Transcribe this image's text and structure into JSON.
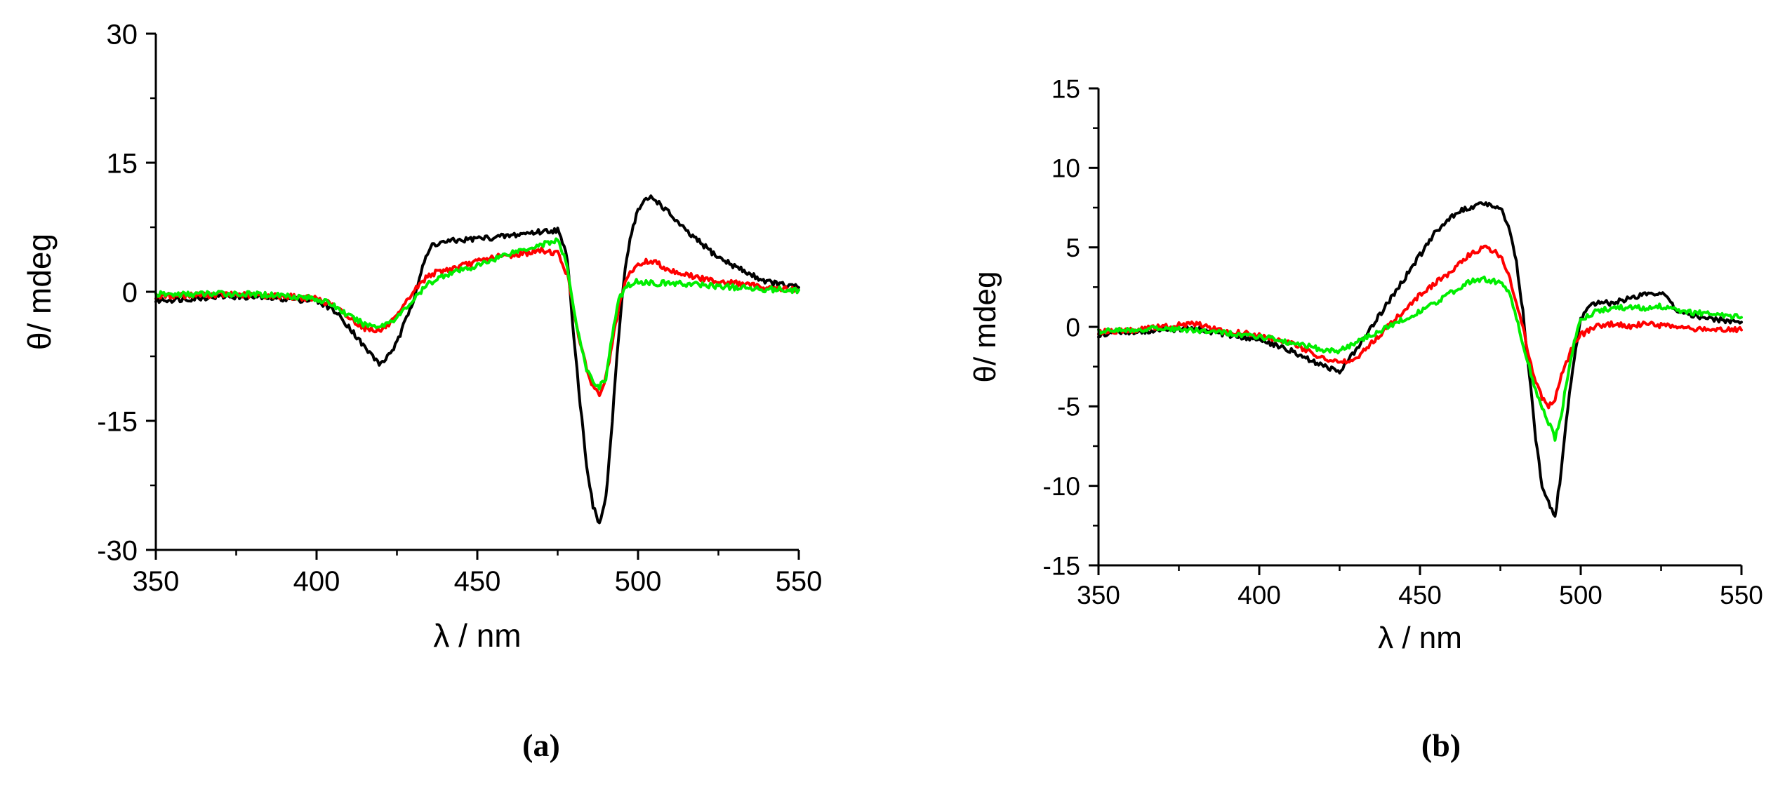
{
  "figure": {
    "panel_labels": [
      "(a)",
      "(b)"
    ]
  },
  "chart_data": [
    {
      "type": "line",
      "panel": "(a)",
      "title": "",
      "xlabel": "λ / nm",
      "ylabel": "θ/ mdeg",
      "xlim": [
        350,
        550
      ],
      "ylim": [
        -30,
        30
      ],
      "xticks": [
        350,
        400,
        450,
        500,
        550
      ],
      "yticks": [
        -30,
        -15,
        0,
        15,
        30
      ],
      "xtick_labels": [
        "350",
        "400",
        "450",
        "500",
        "550"
      ],
      "ytick_labels": [
        "-30",
        "-15",
        "0",
        "15",
        "30"
      ],
      "grid": false,
      "legend": "none",
      "series": [
        {
          "name": "black",
          "color": "#000000",
          "x": [
            350,
            360,
            370,
            380,
            390,
            400,
            405,
            410,
            415,
            420,
            425,
            430,
            433,
            436,
            440,
            445,
            450,
            455,
            460,
            465,
            470,
            475,
            478,
            480,
            482,
            484,
            486,
            488,
            490,
            492,
            494,
            496,
            498,
            500,
            502,
            504,
            506,
            510,
            515,
            520,
            525,
            530,
            535,
            540,
            545,
            550
          ],
          "y": [
            -1,
            -0.8,
            -0.5,
            -0.6,
            -0.8,
            -1,
            -2,
            -4,
            -6.5,
            -8.5,
            -6,
            -1,
            3,
            5.5,
            5.8,
            6,
            6.2,
            6.3,
            6.5,
            6.8,
            7,
            7.2,
            4,
            -5,
            -13,
            -20,
            -25,
            -27,
            -24,
            -15,
            -5,
            3,
            7,
            9.5,
            10.5,
            11,
            10.5,
            9,
            7,
            5.5,
            4,
            3,
            2,
            1.2,
            0.8,
            0.5
          ]
        },
        {
          "name": "red",
          "color": "#ff0000",
          "x": [
            350,
            360,
            370,
            380,
            390,
            400,
            405,
            410,
            415,
            420,
            425,
            430,
            435,
            440,
            445,
            450,
            455,
            460,
            465,
            470,
            475,
            478,
            480,
            482,
            484,
            486,
            488,
            490,
            492,
            494,
            496,
            498,
            500,
            502,
            505,
            510,
            515,
            520,
            530,
            540,
            550
          ],
          "y": [
            -0.5,
            -0.4,
            -0.3,
            -0.4,
            -0.5,
            -0.8,
            -1.5,
            -3,
            -4.2,
            -4.5,
            -3,
            0,
            2,
            2.5,
            3,
            3.5,
            4,
            4.2,
            4.5,
            4.8,
            4.5,
            2,
            -2,
            -6,
            -9,
            -11,
            -12,
            -10,
            -6,
            -2,
            1,
            2.5,
            3,
            3.5,
            3.5,
            2.5,
            2,
            1.5,
            1,
            0.5,
            0.2
          ]
        },
        {
          "name": "green",
          "color": "#00ee00",
          "x": [
            350,
            360,
            370,
            380,
            390,
            400,
            405,
            410,
            415,
            420,
            425,
            430,
            435,
            440,
            445,
            450,
            455,
            460,
            465,
            470,
            475,
            478,
            480,
            482,
            484,
            486,
            488,
            490,
            492,
            494,
            496,
            498,
            500,
            505,
            510,
            520,
            530,
            540,
            550
          ],
          "y": [
            -0.3,
            -0.3,
            -0.2,
            -0.3,
            -0.4,
            -0.8,
            -1.5,
            -2.8,
            -3.8,
            -4,
            -3,
            -1,
            1,
            2,
            2.5,
            3,
            3.8,
            4.5,
            5,
            5.5,
            6,
            3,
            -2,
            -6,
            -9,
            -10.5,
            -11,
            -10,
            -5,
            -1,
            0.5,
            1,
            1.2,
            1,
            1,
            0.8,
            0.5,
            0.3,
            0.2
          ]
        }
      ]
    },
    {
      "type": "line",
      "panel": "(b)",
      "title": "",
      "xlabel": "λ / nm",
      "ylabel": "θ/ mdeg",
      "xlim": [
        350,
        550
      ],
      "ylim": [
        -15,
        15
      ],
      "xticks": [
        350,
        400,
        450,
        500,
        550
      ],
      "yticks": [
        -15,
        -10,
        -5,
        0,
        5,
        10,
        15
      ],
      "xtick_labels": [
        "350",
        "400",
        "450",
        "500",
        "550"
      ],
      "ytick_labels": [
        "-15",
        "-10",
        "-5",
        "0",
        "5",
        "10",
        "15"
      ],
      "grid": false,
      "legend": "none",
      "series": [
        {
          "name": "black",
          "color": "#000000",
          "x": [
            350,
            360,
            370,
            380,
            390,
            400,
            410,
            415,
            420,
            425,
            430,
            435,
            440,
            445,
            450,
            455,
            460,
            465,
            470,
            475,
            478,
            480,
            482,
            484,
            486,
            488,
            490,
            492,
            494,
            496,
            498,
            500,
            502,
            505,
            510,
            515,
            520,
            525,
            530,
            540,
            550
          ],
          "y": [
            -0.5,
            -0.3,
            -0.2,
            -0.1,
            -0.5,
            -0.8,
            -1.5,
            -2,
            -2.5,
            -2.8,
            -1.5,
            0,
            1.5,
            3,
            4.5,
            6,
            7,
            7.5,
            7.8,
            7.5,
            6,
            4,
            1,
            -3,
            -7,
            -10,
            -11,
            -12,
            -9,
            -5,
            -2,
            0.5,
            1.2,
            1.5,
            1.5,
            1.8,
            2,
            2.2,
            1,
            0.5,
            0.3
          ]
        },
        {
          "name": "red",
          "color": "#ff0000",
          "x": [
            350,
            360,
            370,
            380,
            390,
            400,
            410,
            415,
            420,
            425,
            430,
            435,
            440,
            445,
            450,
            455,
            460,
            465,
            470,
            475,
            478,
            480,
            482,
            484,
            486,
            488,
            490,
            492,
            494,
            496,
            498,
            500,
            505,
            510,
            515,
            520,
            530,
            540,
            550
          ],
          "y": [
            -0.3,
            -0.2,
            0,
            0.2,
            -0.3,
            -0.5,
            -1,
            -1.5,
            -2,
            -2.2,
            -2,
            -1,
            0,
            1,
            2,
            2.8,
            3.5,
            4.5,
            5,
            4.5,
            3,
            1.5,
            0,
            -2,
            -3.5,
            -4.5,
            -5,
            -4.5,
            -3,
            -2,
            -1,
            -0.5,
            0,
            0.2,
            0,
            0.2,
            0,
            -0.2,
            -0.2
          ]
        },
        {
          "name": "green",
          "color": "#00ee00",
          "x": [
            350,
            360,
            370,
            380,
            390,
            400,
            410,
            415,
            420,
            425,
            430,
            435,
            440,
            445,
            450,
            455,
            460,
            465,
            470,
            475,
            478,
            480,
            482,
            484,
            486,
            488,
            490,
            492,
            494,
            496,
            498,
            500,
            505,
            510,
            520,
            525,
            530,
            540,
            550
          ],
          "y": [
            -0.3,
            -0.2,
            -0.1,
            -0.2,
            -0.4,
            -0.6,
            -1,
            -1.2,
            -1.5,
            -1.5,
            -1,
            -0.5,
            0,
            0.5,
            1,
            1.5,
            2.2,
            2.8,
            3,
            2.8,
            2,
            0.5,
            -1,
            -2.5,
            -4,
            -5,
            -6,
            -7,
            -5.5,
            -3,
            -1,
            0.5,
            1,
            1.2,
            1.2,
            1.3,
            1,
            0.8,
            0.6
          ]
        }
      ]
    }
  ]
}
